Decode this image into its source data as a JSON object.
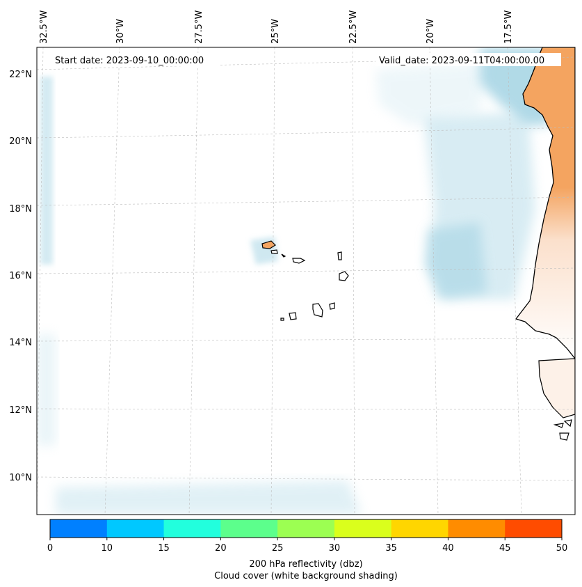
{
  "map": {
    "start_date_label": "Start date: 2023-09-10_00:00:00",
    "valid_date_label": "Valid_date: 2023-09-11T04:00:00.00",
    "longitude_labels": [
      "32.5°W",
      "30°W",
      "27.5°W",
      "25°W",
      "22.5°W",
      "20°W",
      "17.5°W"
    ],
    "latitude_labels": [
      "22°N",
      "20°N",
      "18°N",
      "16°N",
      "14°N",
      "12°N",
      "10°N"
    ],
    "land_color": "#f4a460",
    "cloud_color": "#a9d6e5",
    "coastline_color": "#000000"
  },
  "colorbar": {
    "colors": [
      "#0080ff",
      "#00c8ff",
      "#22ffdd",
      "#5cff8c",
      "#9cff52",
      "#daff1c",
      "#ffd600",
      "#ff8c00",
      "#ff4c00"
    ],
    "tick_labels": [
      "0",
      "10",
      "15",
      "20",
      "25",
      "30",
      "35",
      "40",
      "45",
      "50"
    ],
    "label_line1": "200 hPa reflectivity (dbz)",
    "label_line2": "Cloud cover (white background shading)"
  }
}
